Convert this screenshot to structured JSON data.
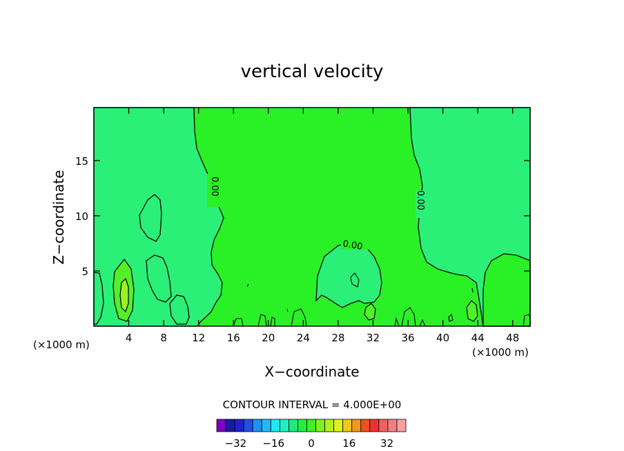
{
  "chart_data": {
    "type": "contour",
    "title": "vertical velocity",
    "xlabel": "X−coordinate",
    "ylabel": "Z−coordinate",
    "x_unit_left": "(×1000 m)",
    "x_unit_right": "(×1000 m)",
    "xlim": [
      0,
      50
    ],
    "ylim": [
      0,
      19.8
    ],
    "x_ticks": [
      4,
      8,
      12,
      16,
      20,
      24,
      28,
      32,
      36,
      40,
      44,
      48
    ],
    "y_ticks": [
      5,
      10,
      15
    ],
    "contour_interval_text": "CONTOUR INTERVAL = 4.000E+00",
    "contour_labels": [
      "0.00",
      "0.00",
      "0.00"
    ],
    "colorbar": {
      "ticks": [
        "−32",
        "−16",
        "0",
        "16",
        "32"
      ],
      "colors": [
        "#8000c0",
        "#1a1aa6",
        "#2020d0",
        "#2050e8",
        "#2090f0",
        "#20b8f8",
        "#20e8f0",
        "#20f0c0",
        "#20e880",
        "#20f040",
        "#40f020",
        "#80f020",
        "#b0f020",
        "#e0f020",
        "#f0c820",
        "#f09820",
        "#f05020",
        "#f03030",
        "#f06060",
        "#f08080",
        "#f8a0a0"
      ]
    },
    "fill_colors": {
      "background": "#2af026",
      "weak_positive": "#52f02a",
      "positive": "#9ef02a",
      "negative": "#2af078",
      "negative_light": "#28ee5a"
    }
  }
}
